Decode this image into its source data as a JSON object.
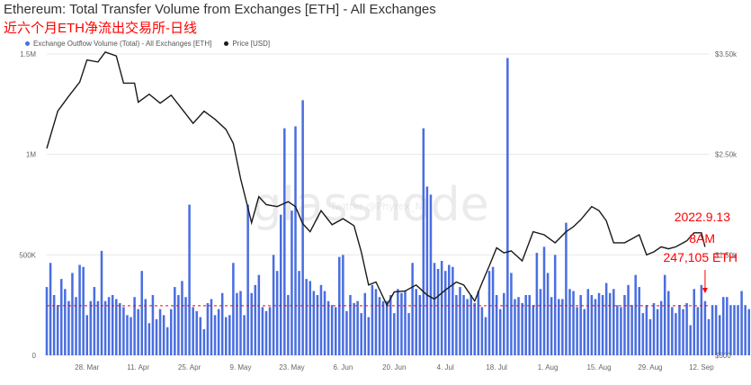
{
  "header": {
    "title": "Ethereum: Total Transfer Volume from Exchanges [ETH] - All Exchanges",
    "subtitle": "近六个月ETH净流出交易所-日线"
  },
  "watermark": {
    "brand": "glassnode",
    "handle": "Twitter @Phyrex_Ni"
  },
  "colors": {
    "bars": "#4a6ee0",
    "price": "#1a1a1a",
    "annotation": "#ff0000",
    "grid": "#e8e8e8"
  },
  "chart_data": {
    "type": "bar",
    "legend_placement": "top-left",
    "legend": [
      {
        "name": "Exchange Outflow Volume (Total) - All Exchanges [ETH]",
        "color": "#4a6ee0",
        "marker": "dot"
      },
      {
        "name": "Price [USD]",
        "color": "#1a1a1a",
        "marker": "dot"
      }
    ],
    "left_axis": {
      "ticks": [
        {
          "label": "0",
          "value": 0
        },
        {
          "label": "500K",
          "value": 500000
        },
        {
          "label": "1M",
          "value": 1000000
        },
        {
          "label": "1.5M",
          "value": 1500000
        }
      ],
      "range": [
        0,
        1500000
      ]
    },
    "right_axis": {
      "ticks": [
        {
          "label": "$500",
          "value": 500
        },
        {
          "label": "$1.50k",
          "value": 1500
        },
        {
          "label": "$2.50k",
          "value": 2500
        },
        {
          "label": "$3.50k",
          "value": 3500
        }
      ],
      "range": [
        500,
        3500
      ]
    },
    "x_ticks": [
      {
        "label": "28. Mar",
        "date": "2022-03-28"
      },
      {
        "label": "11. Apr",
        "date": "2022-04-11"
      },
      {
        "label": "25. Apr",
        "date": "2022-04-25"
      },
      {
        "label": "9. May",
        "date": "2022-05-09"
      },
      {
        "label": "23. May",
        "date": "2022-05-23"
      },
      {
        "label": "6. Jun",
        "date": "2022-06-06"
      },
      {
        "label": "20. Jun",
        "date": "2022-06-20"
      },
      {
        "label": "4. Jul",
        "date": "2022-07-04"
      },
      {
        "label": "18. Jul",
        "date": "2022-07-18"
      },
      {
        "label": "1. Aug",
        "date": "2022-08-01"
      },
      {
        "label": "15. Aug",
        "date": "2022-08-15"
      },
      {
        "label": "29. Aug",
        "date": "2022-08-29"
      },
      {
        "label": "12. Sep",
        "date": "2022-09-12"
      }
    ],
    "x_range": [
      "2022-03-17",
      "2022-09-14"
    ],
    "grid": true,
    "outflow_start_date": "2022-03-17",
    "outflow_volume": [
      340000,
      460000,
      300000,
      250000,
      380000,
      330000,
      270000,
      410000,
      290000,
      450000,
      440000,
      200000,
      270000,
      340000,
      270000,
      520000,
      270000,
      290000,
      300000,
      280000,
      260000,
      240000,
      200000,
      190000,
      290000,
      230000,
      420000,
      280000,
      160000,
      300000,
      180000,
      230000,
      200000,
      140000,
      230000,
      340000,
      300000,
      370000,
      290000,
      750000,
      240000,
      220000,
      190000,
      130000,
      260000,
      280000,
      200000,
      230000,
      310000,
      190000,
      200000,
      460000,
      310000,
      320000,
      200000,
      750000,
      310000,
      350000,
      400000,
      240000,
      220000,
      240000,
      500000,
      420000,
      700000,
      1130000,
      300000,
      720000,
      1140000,
      420000,
      1270000,
      380000,
      370000,
      320000,
      300000,
      350000,
      320000,
      270000,
      250000,
      240000,
      490000,
      500000,
      220000,
      300000,
      260000,
      270000,
      210000,
      310000,
      190000,
      350000,
      330000,
      290000,
      270000,
      270000,
      300000,
      210000,
      330000,
      310000,
      320000,
      210000,
      460000,
      330000,
      300000,
      1130000,
      840000,
      800000,
      460000,
      430000,
      470000,
      420000,
      450000,
      440000,
      300000,
      340000,
      300000,
      280000,
      300000,
      260000,
      320000,
      240000,
      190000,
      420000,
      440000,
      300000,
      230000,
      310000,
      1480000,
      410000,
      280000,
      290000,
      260000,
      300000,
      300000,
      250000,
      510000,
      330000,
      540000,
      410000,
      290000,
      500000,
      280000,
      280000,
      660000,
      330000,
      320000,
      240000,
      300000,
      230000,
      330000,
      300000,
      280000,
      310000,
      300000,
      360000,
      310000,
      330000,
      250000,
      240000,
      300000,
      350000,
      250000,
      400000,
      340000,
      210000,
      250000,
      180000,
      260000,
      230000,
      270000,
      400000,
      320000,
      240000,
      210000,
      250000,
      230000,
      260000,
      150000,
      330000,
      240000,
      350000,
      270000,
      180000,
      250000,
      250000,
      200000,
      290000,
      290000,
      250000,
      250000,
      250000,
      320000,
      250000,
      230000,
      250000,
      430000,
      360000,
      230000,
      370000,
      240000,
      370000,
      560000,
      390000,
      550000,
      270000,
      430000,
      250000,
      250000,
      140000,
      247105
    ],
    "price_points": [
      {
        "date": "2022-03-17",
        "usd": 2560
      },
      {
        "date": "2022-03-20",
        "usd": 2930
      },
      {
        "date": "2022-03-23",
        "usd": 3080
      },
      {
        "date": "2022-03-26",
        "usd": 3220
      },
      {
        "date": "2022-03-28",
        "usd": 3440
      },
      {
        "date": "2022-03-31",
        "usd": 3420
      },
      {
        "date": "2022-04-02",
        "usd": 3520
      },
      {
        "date": "2022-04-05",
        "usd": 3480
      },
      {
        "date": "2022-04-07",
        "usd": 3210
      },
      {
        "date": "2022-04-10",
        "usd": 3210
      },
      {
        "date": "2022-04-11",
        "usd": 3020
      },
      {
        "date": "2022-04-14",
        "usd": 3100
      },
      {
        "date": "2022-04-17",
        "usd": 3010
      },
      {
        "date": "2022-04-20",
        "usd": 3090
      },
      {
        "date": "2022-04-23",
        "usd": 2950
      },
      {
        "date": "2022-04-26",
        "usd": 2810
      },
      {
        "date": "2022-04-29",
        "usd": 2930
      },
      {
        "date": "2022-05-02",
        "usd": 2850
      },
      {
        "date": "2022-05-05",
        "usd": 2750
      },
      {
        "date": "2022-05-07",
        "usd": 2610
      },
      {
        "date": "2022-05-09",
        "usd": 2260
      },
      {
        "date": "2022-05-11",
        "usd": 1970
      },
      {
        "date": "2022-05-12",
        "usd": 1820
      },
      {
        "date": "2022-05-14",
        "usd": 2080
      },
      {
        "date": "2022-05-16",
        "usd": 2000
      },
      {
        "date": "2022-05-19",
        "usd": 1980
      },
      {
        "date": "2022-05-22",
        "usd": 2030
      },
      {
        "date": "2022-05-24",
        "usd": 1980
      },
      {
        "date": "2022-05-26",
        "usd": 1810
      },
      {
        "date": "2022-05-28",
        "usd": 1730
      },
      {
        "date": "2022-05-31",
        "usd": 1940
      },
      {
        "date": "2022-06-03",
        "usd": 1800
      },
      {
        "date": "2022-06-06",
        "usd": 1860
      },
      {
        "date": "2022-06-09",
        "usd": 1790
      },
      {
        "date": "2022-06-11",
        "usd": 1530
      },
      {
        "date": "2022-06-13",
        "usd": 1200
      },
      {
        "date": "2022-06-15",
        "usd": 1230
      },
      {
        "date": "2022-06-18",
        "usd": 1000
      },
      {
        "date": "2022-06-20",
        "usd": 1130
      },
      {
        "date": "2022-06-23",
        "usd": 1140
      },
      {
        "date": "2022-06-26",
        "usd": 1200
      },
      {
        "date": "2022-06-29",
        "usd": 1100
      },
      {
        "date": "2022-07-01",
        "usd": 1060
      },
      {
        "date": "2022-07-04",
        "usd": 1150
      },
      {
        "date": "2022-07-07",
        "usd": 1230
      },
      {
        "date": "2022-07-09",
        "usd": 1200
      },
      {
        "date": "2022-07-12",
        "usd": 1040
      },
      {
        "date": "2022-07-14",
        "usd": 1220
      },
      {
        "date": "2022-07-16",
        "usd": 1390
      },
      {
        "date": "2022-07-18",
        "usd": 1570
      },
      {
        "date": "2022-07-20",
        "usd": 1520
      },
      {
        "date": "2022-07-22",
        "usd": 1540
      },
      {
        "date": "2022-07-25",
        "usd": 1440
      },
      {
        "date": "2022-07-28",
        "usd": 1730
      },
      {
        "date": "2022-07-31",
        "usd": 1700
      },
      {
        "date": "2022-08-03",
        "usd": 1620
      },
      {
        "date": "2022-08-06",
        "usd": 1730
      },
      {
        "date": "2022-08-08",
        "usd": 1780
      },
      {
        "date": "2022-08-10",
        "usd": 1850
      },
      {
        "date": "2022-08-13",
        "usd": 1980
      },
      {
        "date": "2022-08-15",
        "usd": 1940
      },
      {
        "date": "2022-08-17",
        "usd": 1840
      },
      {
        "date": "2022-08-19",
        "usd": 1620
      },
      {
        "date": "2022-08-22",
        "usd": 1620
      },
      {
        "date": "2022-08-24",
        "usd": 1660
      },
      {
        "date": "2022-08-26",
        "usd": 1700
      },
      {
        "date": "2022-08-28",
        "usd": 1500
      },
      {
        "date": "2022-08-30",
        "usd": 1530
      },
      {
        "date": "2022-09-01",
        "usd": 1580
      },
      {
        "date": "2022-09-03",
        "usd": 1560
      },
      {
        "date": "2022-09-05",
        "usd": 1580
      },
      {
        "date": "2022-09-08",
        "usd": 1640
      },
      {
        "date": "2022-09-10",
        "usd": 1720
      },
      {
        "date": "2022-09-12",
        "usd": 1720
      },
      {
        "date": "2022-09-13",
        "usd": 1580
      }
    ],
    "reference_line": {
      "value": 247105,
      "color": "#ff0000",
      "style": "dashed"
    },
    "annotation": {
      "lines": [
        "2022.9.13",
        "8AM",
        "247,105 ETH"
      ],
      "date": "2022-09-13",
      "value": 247105
    }
  }
}
